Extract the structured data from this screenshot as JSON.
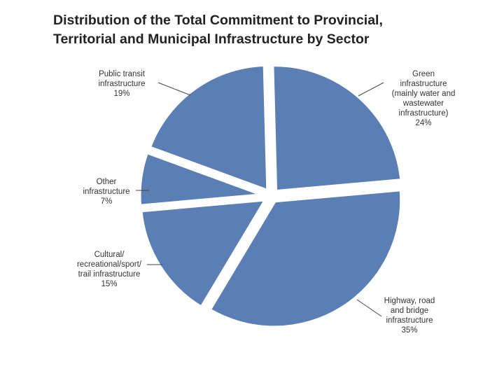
{
  "chart_data": {
    "type": "pie",
    "title_lines": [
      "Distribution of the Total Commitment to Provincial,",
      "Territorial and Municipal Infrastructure by Sector"
    ],
    "slice_color": "#5b7fb4",
    "slices": [
      {
        "label_lines": [
          "Green",
          "infrastructure",
          "(mainly water and",
          "wastewater",
          "infrastructure)"
        ],
        "value": 24,
        "value_label": "24%"
      },
      {
        "label_lines": [
          "Highway, road",
          "and bridge",
          "infrastructure"
        ],
        "value": 35,
        "value_label": "35%"
      },
      {
        "label_lines": [
          "Cultural/",
          "recreational/sport/",
          "trail infrastructure"
        ],
        "value": 15,
        "value_label": "15%"
      },
      {
        "label_lines": [
          "Other",
          "infrastructure"
        ],
        "value": 7,
        "value_label": "7%"
      },
      {
        "label_lines": [
          "Public transit",
          "infrastructure"
        ],
        "value": 19,
        "value_label": "19%"
      }
    ]
  }
}
